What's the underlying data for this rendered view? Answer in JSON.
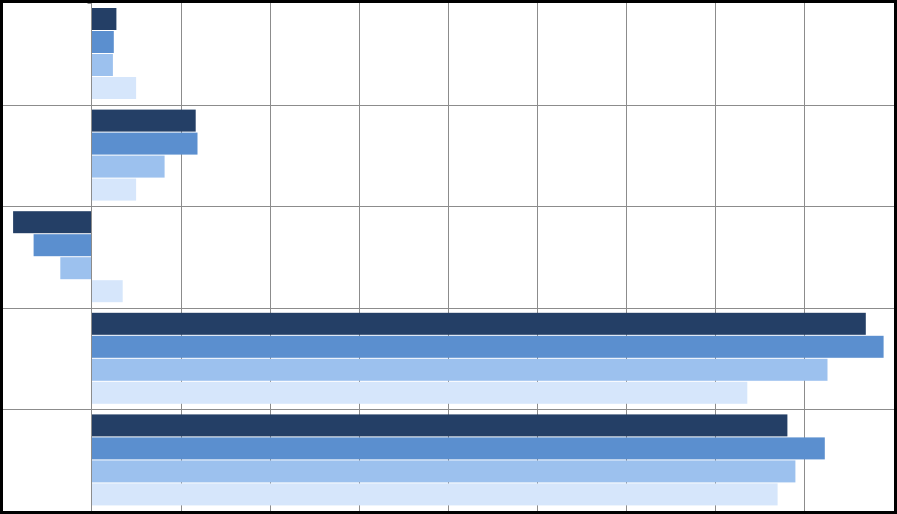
{
  "chart_data": {
    "type": "bar",
    "orientation": "horizontal",
    "title": "",
    "xlabel": "",
    "ylabel": "",
    "x_tick_labels_visible": false,
    "y_tick_labels_visible": false,
    "legend_visible": false,
    "grid": true,
    "xlim": [
      -0.9,
      9
    ],
    "x_gridline_step": 1,
    "category_count": 5,
    "series": [
      {
        "values": [
          0.28,
          1.17,
          -0.88,
          8.69,
          7.81
        ],
        "color": "#243f66"
      },
      {
        "values": [
          0.25,
          1.19,
          -0.65,
          8.89,
          8.23
        ],
        "color": "#5b8fcf"
      },
      {
        "values": [
          0.24,
          0.82,
          -0.35,
          8.26,
          7.9
        ],
        "color": "#9cc1ee"
      },
      {
        "values": [
          0.5,
          0.5,
          0.35,
          7.36,
          7.7
        ],
        "color": "#d6e6fb"
      }
    ],
    "colors": {
      "background": "#ffffff",
      "grid": "#8c8c8c",
      "border": "#000000"
    }
  }
}
